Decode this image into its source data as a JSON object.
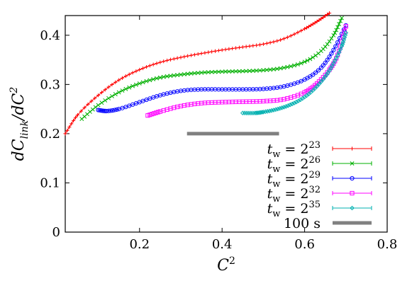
{
  "chart_data": {
    "type": "line",
    "xlabel": "C²",
    "ylabel": "dC_link/dC²",
    "xlim": [
      0.02,
      0.8
    ],
    "ylim": [
      0,
      0.44
    ],
    "xticks": [
      0.2,
      0.4,
      0.6,
      0.8
    ],
    "yticks": [
      0,
      0.1,
      0.2,
      0.3,
      0.4
    ],
    "x_tick_labels": [
      "0.2",
      "0.4",
      "0.6",
      "0.8"
    ],
    "y_tick_labels": [
      "0",
      "0.1",
      "0.2",
      "0.3",
      "0.4"
    ],
    "grid": false,
    "legend_position": "bottom-right",
    "series": [
      {
        "name": "t_w = 2^23",
        "label_base": "t",
        "label_sub": "w",
        "label_eq": " = 2",
        "label_sup": "23",
        "color": "#ff0000",
        "marker": "plus",
        "x": [
          0.02,
          0.05,
          0.1,
          0.15,
          0.2,
          0.25,
          0.3,
          0.35,
          0.4,
          0.45,
          0.5,
          0.55,
          0.6,
          0.63,
          0.66
        ],
        "y": [
          0.2,
          0.238,
          0.278,
          0.309,
          0.33,
          0.345,
          0.355,
          0.363,
          0.37,
          0.376,
          0.382,
          0.393,
          0.413,
          0.428,
          0.445
        ]
      },
      {
        "name": "t_w = 2^26",
        "label_base": "t",
        "label_sub": "w",
        "label_eq": " = 2",
        "label_sup": "26",
        "color": "#00b000",
        "marker": "cross",
        "x": [
          0.06,
          0.1,
          0.15,
          0.2,
          0.25,
          0.3,
          0.35,
          0.4,
          0.45,
          0.5,
          0.55,
          0.6,
          0.64,
          0.67,
          0.69
        ],
        "y": [
          0.23,
          0.258,
          0.284,
          0.302,
          0.314,
          0.32,
          0.324,
          0.326,
          0.327,
          0.329,
          0.334,
          0.346,
          0.368,
          0.4,
          0.435
        ]
      },
      {
        "name": "t_w = 2^29",
        "label_base": "t",
        "label_sub": "w",
        "label_eq": " = 2",
        "label_sup": "29",
        "color": "#0000ff",
        "marker": "circle",
        "x": [
          0.1,
          0.12,
          0.15,
          0.2,
          0.25,
          0.3,
          0.35,
          0.4,
          0.45,
          0.5,
          0.55,
          0.6,
          0.64,
          0.67,
          0.7
        ],
        "y": [
          0.248,
          0.246,
          0.25,
          0.264,
          0.278,
          0.287,
          0.29,
          0.29,
          0.29,
          0.291,
          0.296,
          0.31,
          0.334,
          0.37,
          0.42
        ]
      },
      {
        "name": "t_w = 2^32",
        "label_base": "t",
        "label_sub": "w",
        "label_eq": " = 2",
        "label_sup": "32",
        "color": "#ff00ff",
        "marker": "square",
        "x": [
          0.22,
          0.25,
          0.3,
          0.35,
          0.4,
          0.45,
          0.5,
          0.55,
          0.6,
          0.63,
          0.66,
          0.68,
          0.7
        ],
        "y": [
          0.237,
          0.245,
          0.256,
          0.262,
          0.264,
          0.265,
          0.266,
          0.27,
          0.284,
          0.302,
          0.33,
          0.36,
          0.418
        ]
      },
      {
        "name": "t_w = 2^35",
        "label_base": "t",
        "label_sub": "w",
        "label_eq": " = 2",
        "label_sup": "35",
        "color": "#00b0b0",
        "marker": "diamond",
        "x": [
          0.45,
          0.48,
          0.5,
          0.53,
          0.56,
          0.59,
          0.62,
          0.65,
          0.67,
          0.69,
          0.7
        ],
        "y": [
          0.242,
          0.242,
          0.244,
          0.249,
          0.257,
          0.269,
          0.288,
          0.316,
          0.343,
          0.378,
          0.405
        ]
      }
    ],
    "scale_bar": {
      "label": "100 s",
      "color": "#808080",
      "x_start": 0.315,
      "x_end": 0.538,
      "y": 0.2
    }
  }
}
